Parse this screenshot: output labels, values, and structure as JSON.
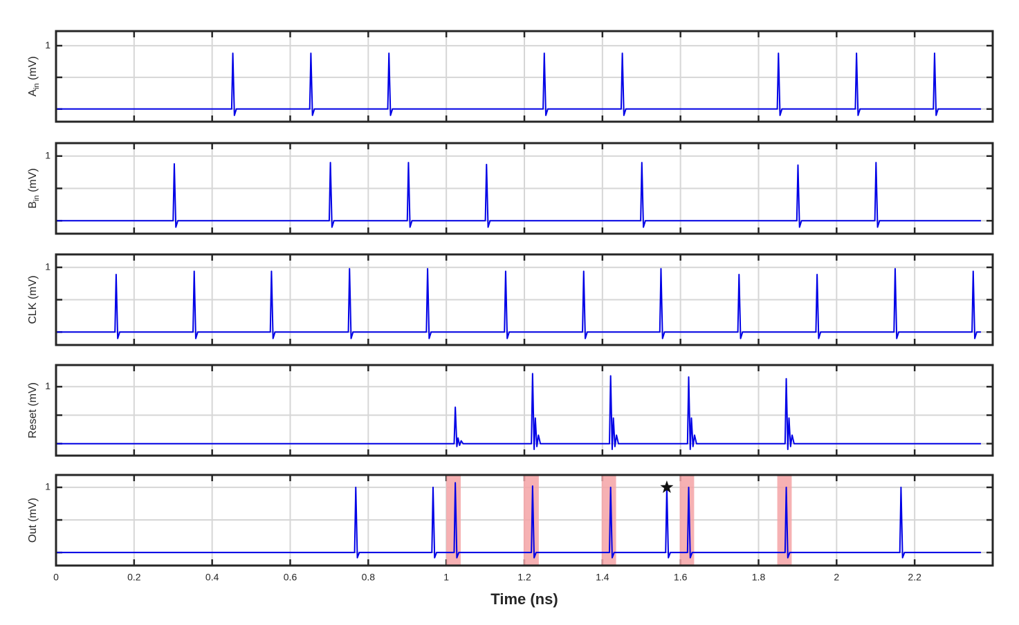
{
  "chart_data": [
    {
      "type": "line",
      "ylabel": {
        "base": "A",
        "sub": "in",
        "rest": " (mV)"
      },
      "color": "#0000e6",
      "grid": true,
      "xlim": [
        0,
        2.4
      ],
      "xticks": [
        0,
        0.2,
        0.4,
        0.6,
        0.8,
        1,
        1.2,
        1.4,
        1.6,
        1.8,
        2,
        2.2
      ],
      "ylim": [
        -0.2,
        1.23
      ],
      "yticks": [
        {
          "value": 0,
          "label": null
        },
        {
          "value": 0.5,
          "label": null
        },
        1
      ],
      "x": [
        0,
        0.45,
        0.453,
        0.457,
        0.462,
        0.65,
        0.653,
        0.657,
        0.662,
        0.85,
        0.853,
        0.857,
        0.862,
        1.248,
        1.251,
        1.255,
        1.26,
        1.448,
        1.451,
        1.455,
        1.46,
        1.848,
        1.851,
        1.855,
        1.86,
        2.048,
        2.051,
        2.055,
        2.06,
        2.248,
        2.251,
        2.255,
        2.26,
        2.37
      ],
      "values": [
        0,
        0,
        0.88,
        -0.1,
        0,
        0,
        0.88,
        -0.1,
        0,
        0,
        0.88,
        -0.1,
        0,
        0,
        0.88,
        -0.1,
        0,
        0,
        0.88,
        -0.1,
        0,
        0,
        0.88,
        -0.1,
        0,
        0,
        0.88,
        -0.1,
        0,
        0,
        0.88,
        -0.1,
        0,
        0
      ]
    },
    {
      "type": "line",
      "ylabel": {
        "base": "B",
        "sub": "in",
        "rest": " (mV)"
      },
      "color": "#0000e6",
      "grid": true,
      "xlim": [
        0,
        2.4
      ],
      "xticks": [
        0,
        0.2,
        0.4,
        0.6,
        0.8,
        1,
        1.2,
        1.4,
        1.6,
        1.8,
        2,
        2.2
      ],
      "ylim": [
        -0.2,
        1.2
      ],
      "yticks": [
        {
          "value": 0,
          "label": null
        },
        {
          "value": 0.5,
          "label": null
        },
        1
      ],
      "x": [
        0,
        0.3,
        0.303,
        0.307,
        0.312,
        0.7,
        0.703,
        0.707,
        0.712,
        0.9,
        0.903,
        0.907,
        0.912,
        1.1,
        1.103,
        1.107,
        1.112,
        1.498,
        1.501,
        1.505,
        1.51,
        1.898,
        1.901,
        1.905,
        1.91,
        2.098,
        2.101,
        2.105,
        2.11,
        2.37
      ],
      "values": [
        0,
        0,
        0.88,
        -0.1,
        0,
        0,
        0.9,
        -0.1,
        0,
        0,
        0.9,
        -0.1,
        0,
        0,
        0.87,
        -0.1,
        0,
        0,
        0.9,
        -0.1,
        0,
        0,
        0.86,
        -0.1,
        0,
        0,
        0.9,
        -0.1,
        0,
        0
      ]
    },
    {
      "type": "line",
      "ylabel": "CLK (mV)",
      "color": "#0000e6",
      "grid": true,
      "xlim": [
        0,
        2.4
      ],
      "xticks": [
        0,
        0.2,
        0.4,
        0.6,
        0.8,
        1,
        1.2,
        1.4,
        1.6,
        1.8,
        2,
        2.2
      ],
      "ylim": [
        -0.2,
        1.2
      ],
      "yticks": [
        {
          "value": 0,
          "label": null
        },
        {
          "value": 0.5,
          "label": null
        },
        1
      ],
      "x": [
        0,
        0.151,
        0.154,
        0.158,
        0.163,
        0.351,
        0.354,
        0.358,
        0.363,
        0.549,
        0.552,
        0.556,
        0.561,
        0.749,
        0.752,
        0.756,
        0.761,
        0.949,
        0.952,
        0.956,
        0.961,
        1.149,
        1.152,
        1.156,
        1.161,
        1.349,
        1.352,
        1.356,
        1.361,
        1.547,
        1.55,
        1.554,
        1.559,
        1.747,
        1.75,
        1.754,
        1.759,
        1.947,
        1.95,
        1.954,
        1.959,
        2.147,
        2.15,
        2.154,
        2.159,
        2.347,
        2.35,
        2.354,
        2.359,
        2.37
      ],
      "values": [
        0,
        0,
        0.89,
        -0.1,
        0,
        0,
        0.94,
        -0.1,
        0,
        0,
        0.94,
        -0.1,
        0,
        0,
        0.98,
        -0.1,
        0,
        0,
        0.98,
        -0.1,
        0,
        0,
        0.94,
        -0.1,
        0,
        0,
        0.94,
        -0.1,
        0,
        0,
        0.98,
        -0.1,
        0,
        0,
        0.89,
        -0.1,
        0,
        0,
        0.89,
        -0.1,
        0,
        0,
        0.98,
        -0.1,
        0,
        0,
        0.94,
        -0.1,
        0,
        0
      ]
    },
    {
      "type": "line",
      "ylabel": "Reset (mV)",
      "color": "#0000e6",
      "grid": true,
      "xlim": [
        0,
        2.4
      ],
      "xticks": [
        0,
        0.2,
        0.4,
        0.6,
        0.8,
        1,
        1.2,
        1.4,
        1.6,
        1.8,
        2,
        2.2
      ],
      "ylim": [
        -0.21,
        1.38
      ],
      "yticks": [
        {
          "value": 0,
          "label": null
        },
        {
          "value": 0.5,
          "label": null
        },
        1
      ],
      "x": [
        0,
        1.02,
        1.023,
        1.027,
        1.03,
        1.034,
        1.038,
        1.043,
        1.218,
        1.221,
        1.225,
        1.228,
        1.232,
        1.236,
        1.241,
        1.418,
        1.421,
        1.425,
        1.428,
        1.432,
        1.436,
        1.441,
        1.618,
        1.621,
        1.625,
        1.628,
        1.632,
        1.636,
        1.641,
        1.868,
        1.871,
        1.875,
        1.878,
        1.882,
        1.886,
        1.891,
        2.37
      ],
      "values": [
        0,
        0,
        0.64,
        -0.05,
        0.1,
        -0.03,
        0.05,
        0,
        0,
        1.23,
        -0.1,
        0.45,
        -0.05,
        0.15,
        0,
        0,
        1.19,
        -0.1,
        0.45,
        -0.05,
        0.15,
        0,
        0,
        1.17,
        -0.1,
        0.45,
        -0.05,
        0.15,
        0,
        0,
        1.14,
        -0.1,
        0.45,
        -0.05,
        0.15,
        0,
        0
      ]
    },
    {
      "type": "line",
      "ylabel": "Out (mV)",
      "xlabel": "Time (ns)",
      "color": "#0000e6",
      "grid": true,
      "xlim": [
        0,
        2.4
      ],
      "xticks": [
        0,
        0.2,
        0.4,
        0.6,
        0.8,
        1,
        1.2,
        1.4,
        1.6,
        1.8,
        2,
        2.2
      ],
      "ylim": [
        -0.2,
        1.19
      ],
      "yticks": [
        {
          "value": 0,
          "label": null
        },
        {
          "value": 0.5,
          "label": null
        },
        1
      ],
      "highlight_color": "#f4a3a6",
      "highlights": [
        [
          1.0,
          1.037
        ],
        [
          1.198,
          1.237
        ],
        [
          1.398,
          1.435
        ],
        [
          1.598,
          1.635
        ],
        [
          1.848,
          1.885
        ]
      ],
      "star": {
        "x": 1.565,
        "y": 1.0
      },
      "x": [
        0,
        0.765,
        0.768,
        0.772,
        0.777,
        0.963,
        0.966,
        0.97,
        0.975,
        1.02,
        1.023,
        1.027,
        1.032,
        1.218,
        1.221,
        1.225,
        1.23,
        1.418,
        1.421,
        1.425,
        1.43,
        1.562,
        1.565,
        1.569,
        1.574,
        1.618,
        1.621,
        1.625,
        1.63,
        1.868,
        1.871,
        1.875,
        1.88,
        2.162,
        2.165,
        2.169,
        2.174,
        2.37
      ],
      "values": [
        0,
        0,
        1.0,
        -0.08,
        0,
        0,
        1.0,
        -0.08,
        0,
        0,
        1.07,
        -0.08,
        0,
        0,
        1.02,
        -0.08,
        0,
        0,
        1.0,
        -0.08,
        0,
        0,
        1.0,
        -0.08,
        0,
        0,
        1.0,
        -0.08,
        0,
        0,
        1.0,
        -0.08,
        0,
        0,
        1.0,
        -0.08,
        0,
        0
      ]
    }
  ]
}
